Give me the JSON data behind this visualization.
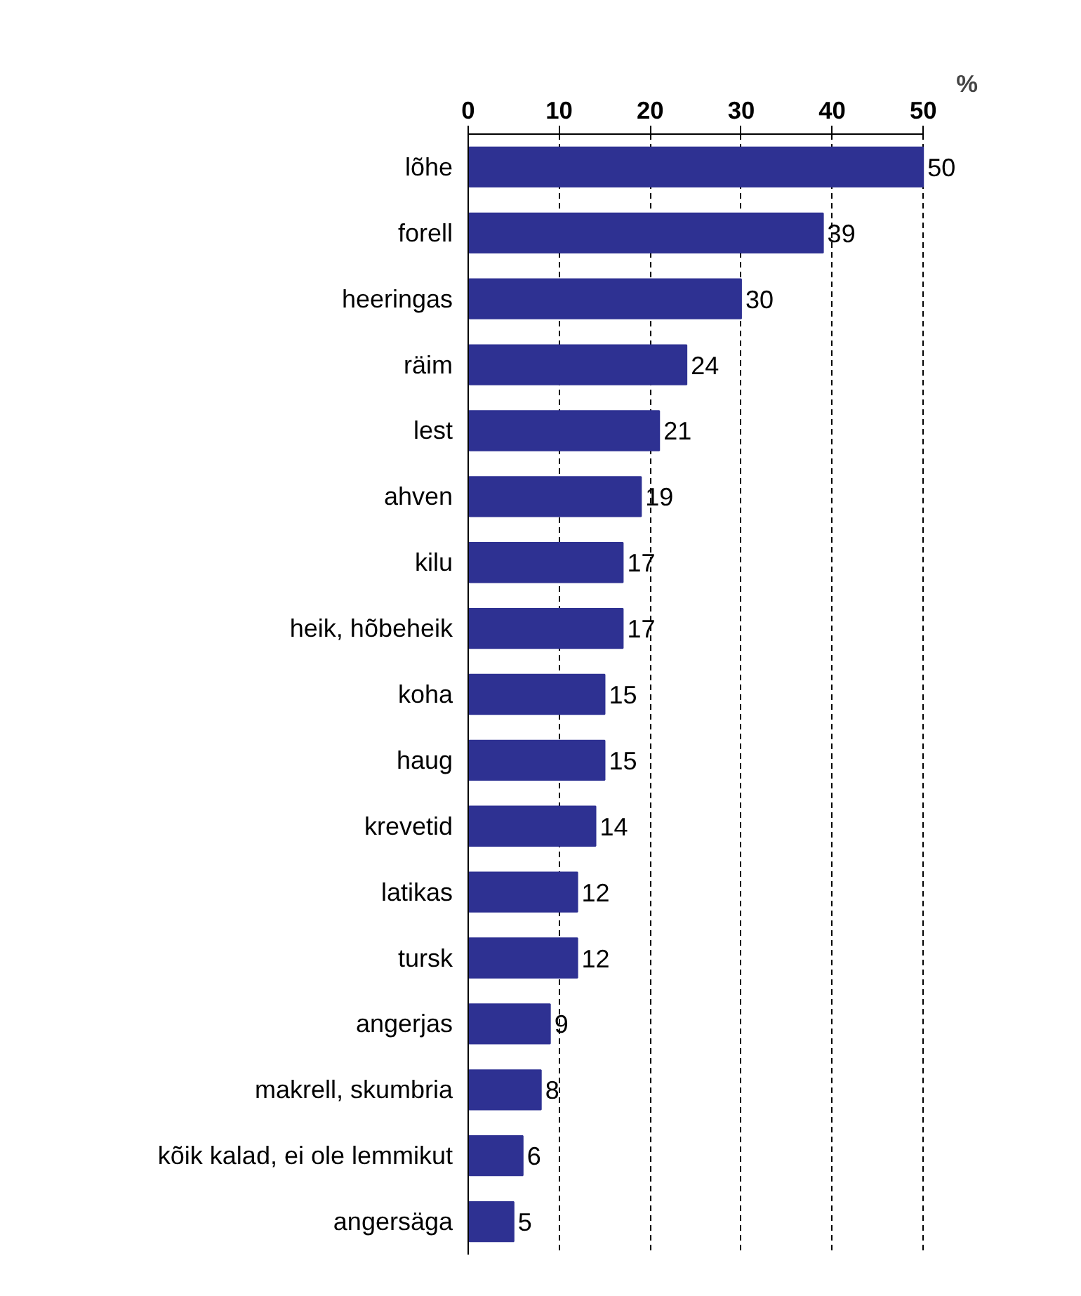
{
  "chart_data": {
    "type": "bar",
    "orientation": "horizontal",
    "xlabel": "%",
    "categories": [
      "lõhe",
      "forell",
      "heeringas",
      "räim",
      "lest",
      "ahven",
      "kilu",
      "heik, hõbeheik",
      "koha",
      "haug",
      "krevetid",
      "latikas",
      "tursk",
      "angerjas",
      "makrell, skumbria",
      "kõik kalad, ei ole lemmikut",
      "angersäga"
    ],
    "values": [
      50,
      39,
      30,
      24,
      21,
      19,
      17,
      17,
      15,
      15,
      14,
      12,
      12,
      9,
      8,
      6,
      5
    ],
    "color": "#2e3192",
    "xlim": [
      0,
      50
    ],
    "xticks": [
      0,
      10,
      20,
      30,
      40,
      50
    ],
    "grid": "x",
    "data_labels": true
  }
}
